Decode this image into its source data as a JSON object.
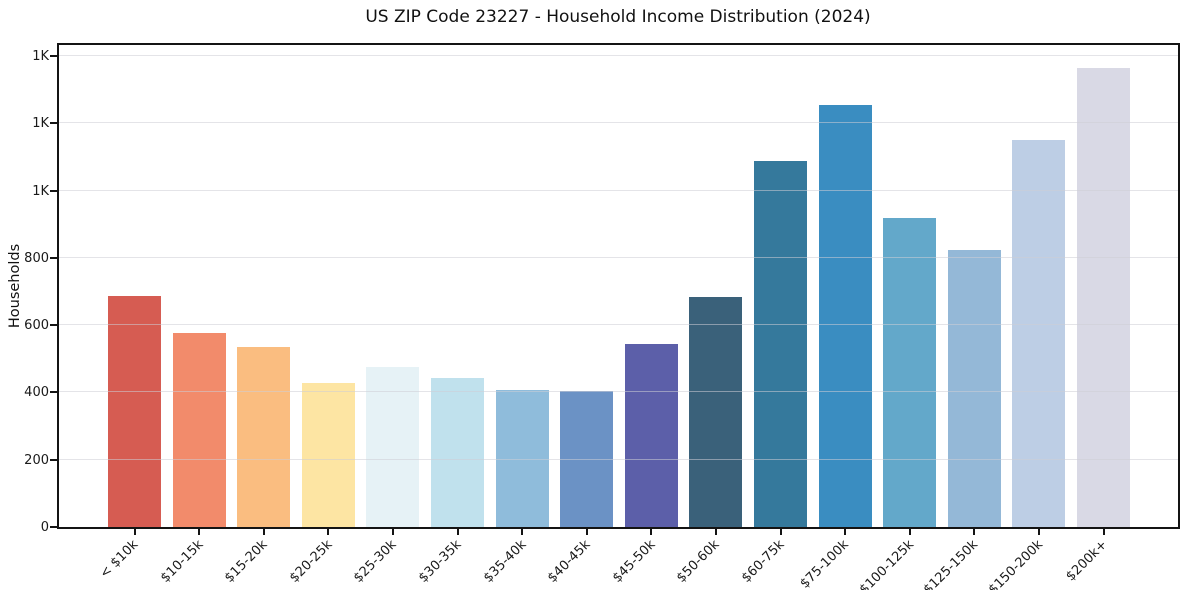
{
  "chart_data": {
    "type": "bar",
    "title": "US ZIP Code 23227 - Household Income Distribution (2024)",
    "xlabel": "",
    "ylabel": "Households",
    "categories": [
      "< $10k",
      "$10-15k",
      "$15-20k",
      "$20-25k",
      "$25-30k",
      "$30-35k",
      "$35-40k",
      "$40-45k",
      "$45-50k",
      "$50-60k",
      "$60-75k",
      "$75-100k",
      "$100-125k",
      "$125-150k",
      "$150-200k",
      "$200k+"
    ],
    "values": [
      687,
      578,
      536,
      428,
      476,
      443,
      407,
      404,
      544,
      683,
      1088,
      1255,
      919,
      823,
      1150,
      1364
    ],
    "bar_colors": [
      "#d65c52",
      "#f28b6b",
      "#fabd80",
      "#fde5a3",
      "#e6f2f6",
      "#c0e1ed",
      "#8fbcdb",
      "#6b92c5",
      "#5c5fa9",
      "#3a617a",
      "#35799c",
      "#3a8dc1",
      "#63a8ca",
      "#94b8d7",
      "#bdcee5",
      "#d9d9e5"
    ],
    "ylim": [
      0,
      1433
    ],
    "yticks": [
      0,
      200,
      400,
      600,
      800,
      1000,
      1200,
      1400
    ],
    "ytick_labels": [
      "0",
      "200",
      "400",
      "600",
      "800",
      "1K",
      "1K",
      "1K"
    ],
    "grid": "horizontal",
    "legend": "none",
    "spine_color": "#141414",
    "gridline_color": "#e8e8ec"
  }
}
